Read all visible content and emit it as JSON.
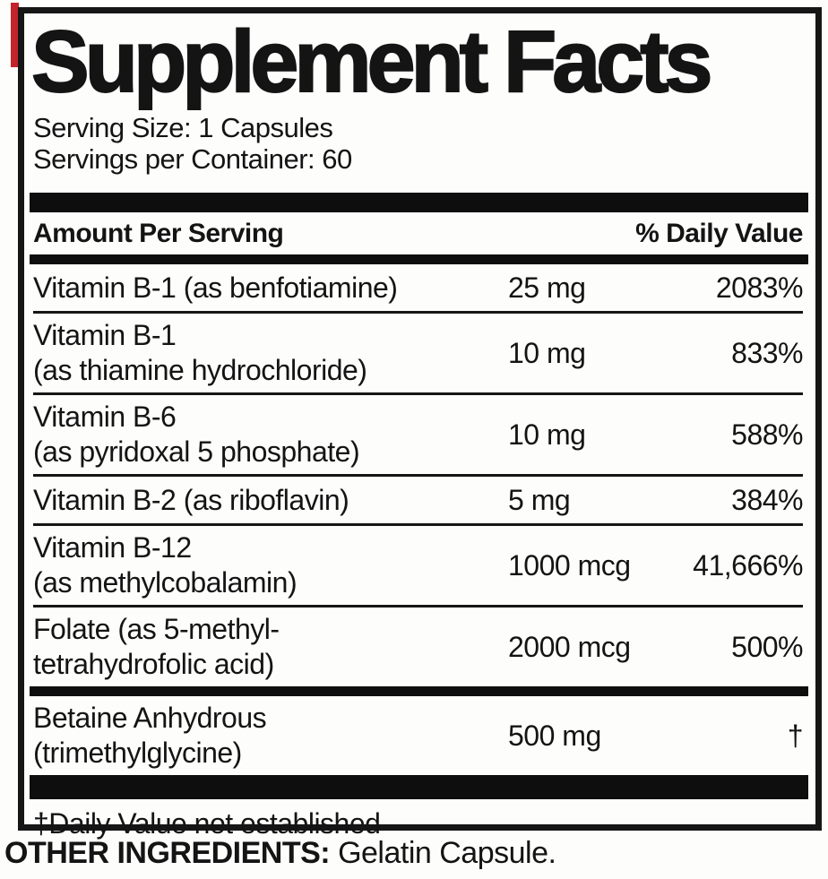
{
  "colors": {
    "accent_red": "#c4232b",
    "ink_black": "#141414",
    "background": "#fdfdfc"
  },
  "label": {
    "title": "Supplement Facts",
    "serving_size": "Serving Size: 1 Capsules",
    "servings_per_container": "Servings per Container: 60",
    "header": {
      "amount": "Amount Per Serving",
      "daily_value": "% Daily Value"
    },
    "rows": [
      {
        "name": "Vitamin B-1 (as benfotiamine)",
        "name2": "",
        "amount": "25 mg",
        "dv": "2083%"
      },
      {
        "name": "Vitamin B-1",
        "name2": "(as thiamine hydrochloride)",
        "amount": "10 mg",
        "dv": "833%"
      },
      {
        "name": "Vitamin B-6",
        "name2": "(as pyridoxal 5 phosphate)",
        "amount": "10 mg",
        "dv": "588%"
      },
      {
        "name": "Vitamin B-2 (as riboflavin)",
        "name2": "",
        "amount": "5 mg",
        "dv": "384%"
      },
      {
        "name": "Vitamin B-12",
        "name2": "(as methylcobalamin)",
        "amount": "1000 mcg",
        "dv": "41,666%"
      },
      {
        "name": "Folate (as 5-methyl-",
        "name2": "tetrahydrofolic acid)",
        "amount": "2000 mcg",
        "dv": "500%"
      },
      {
        "name": "Betaine Anhydrous",
        "name2": "(trimethylglycine)",
        "amount": "500 mg",
        "dv": "†"
      }
    ],
    "footnote": "†Daily Value not established",
    "other_ingredients_label": "OTHER INGREDIENTS:",
    "other_ingredients_value": "Gelatin Capsule."
  }
}
